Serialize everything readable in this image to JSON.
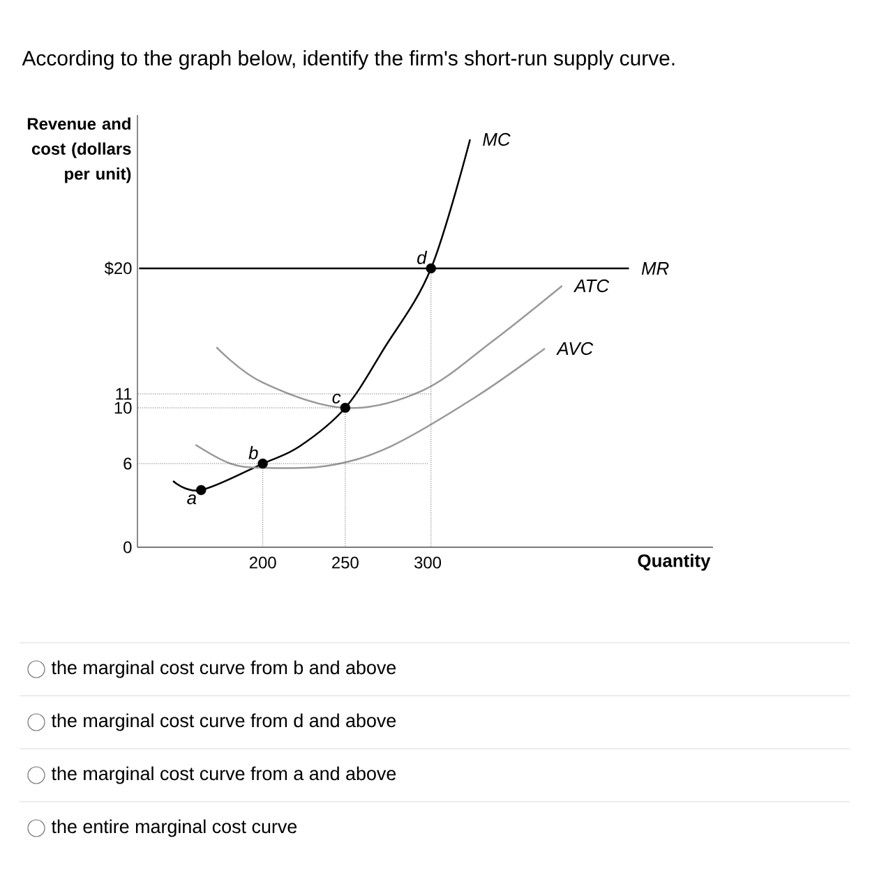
{
  "chart_data": {
    "type": "line",
    "title": "According to the graph below, identify the firm's short-run supply curve.",
    "ylabel": "Revenue and cost (dollars per unit)",
    "xlabel": "Quantity",
    "xlim": [
      124,
      473
    ],
    "ylim": [
      0,
      31
    ],
    "xticks": [
      200,
      250,
      300
    ],
    "yticks": [
      0,
      6,
      10,
      11,
      {
        "value": 20,
        "label": "$20"
      }
    ],
    "grid": false,
    "series": [
      {
        "name": "MC",
        "color": "#000000",
        "line_style": "solid",
        "x": [
          145.6,
          162.6,
          200,
          222.5,
          250,
          273.5,
          302,
          325.7
        ],
        "values": [
          4.75,
          4.1,
          6,
          7.25,
          10,
          14.25,
          20,
          29.25
        ]
      },
      {
        "name": "MR",
        "color": "#000000",
        "line_style": "solid",
        "x": [
          125,
          422
        ],
        "values": [
          20,
          20
        ]
      },
      {
        "name": "ATC",
        "color": "#999999",
        "line_style": "solid",
        "x": [
          171.9,
          199.4,
          250,
          297,
          339,
          381.5
        ],
        "values": [
          14.35,
          11.85,
          10,
          11.25,
          14.75,
          18.75
        ]
      },
      {
        "name": "AVC",
        "color": "#999999",
        "line_style": "solid",
        "x": [
          159.2,
          180.4,
          200,
          239.7,
          277.8,
          328.7,
          371
        ],
        "values": [
          7.35,
          6,
          5.7,
          5.85,
          7.25,
          10.75,
          14.25
        ]
      },
      {
        "color": "#555555",
        "line_style": "dotted",
        "x": [
          124,
          302
        ],
        "values": [
          11,
          11
        ]
      },
      {
        "color": "#555555",
        "line_style": "dotted",
        "x": [
          124,
          250
        ],
        "values": [
          10,
          10
        ]
      },
      {
        "color": "#555555",
        "line_style": "dotted",
        "x": [
          124,
          300
        ],
        "values": [
          6,
          6
        ]
      },
      {
        "color": "#555555",
        "line_style": "dotted",
        "x": [
          200,
          200
        ],
        "values": [
          0,
          6
        ]
      },
      {
        "color": "#555555",
        "line_style": "dotted",
        "x": [
          250,
          250
        ],
        "values": [
          0,
          10
        ]
      },
      {
        "color": "#555555",
        "line_style": "dotted",
        "x": [
          302,
          302
        ],
        "values": [
          0,
          20
        ]
      },
      {
        "type": "scatter",
        "marker": "circle",
        "color": "#000000",
        "x": [
          162.6,
          200,
          250,
          302
        ],
        "values": [
          4.1,
          6,
          10,
          20
        ]
      }
    ],
    "annotations": [
      {
        "text": "a",
        "x": 162.6,
        "y": 4.1
      },
      {
        "text": "b",
        "x": 200,
        "y": 6
      },
      {
        "text": "c",
        "x": 250,
        "y": 10
      },
      {
        "text": "d",
        "x": 302,
        "y": 20
      },
      "the marginal cost curve from b and above",
      "the marginal cost curve from d and above",
      "the marginal cost curve from a and above",
      "the entire marginal cost curve"
    ]
  }
}
